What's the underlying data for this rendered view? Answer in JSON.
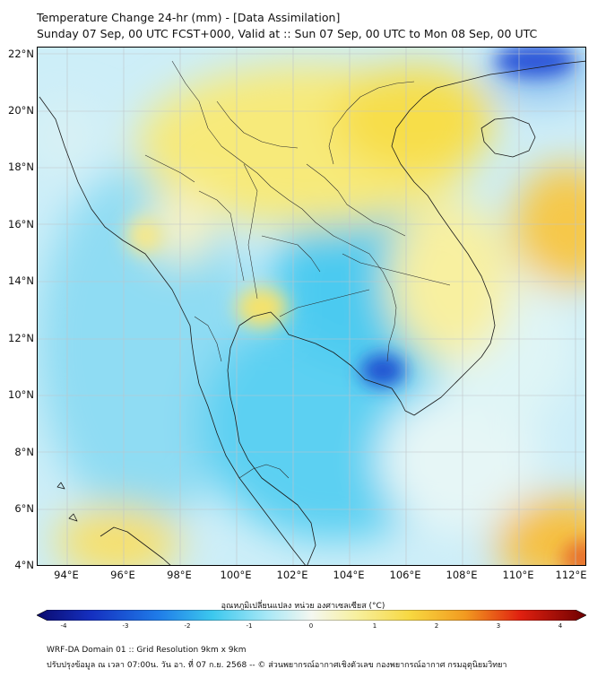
{
  "header": {
    "title": "Temperature Change 24-hr (mm) - [Data Assimilation]",
    "subtitle": "Sunday 07 Sep, 00 UTC FCST+000, Valid at :: Sun 07 Sep, 00 UTC to Mon 08 Sep, 00 UTC"
  },
  "map": {
    "lat_labels": [
      "22°N",
      "20°N",
      "18°N",
      "16°N",
      "14°N",
      "12°N",
      "10°N",
      "8°N",
      "6°N",
      "4°N"
    ],
    "lon_labels": [
      "94°E",
      "96°E",
      "98°E",
      "100°E",
      "102°E",
      "104°E",
      "106°E",
      "108°E",
      "110°E",
      "112°E"
    ]
  },
  "colorbar": {
    "label": "อุณหภูมิเปลี่ยนแปลง หน่วย องศาเซลเซียส (°C)",
    "ticks": [
      "-4",
      "-3",
      "-2",
      "-1",
      "0",
      "1",
      "2",
      "3",
      "4"
    ]
  },
  "footer": {
    "line1": "WRF-DA Domain 01 :: Grid Resolution 9km x 9km",
    "line2": "ปรับปรุงข้อมูล ณ เวลา 07:00น. วัน อา. ที่ 07 ก.ย. 2568 -- © ส่วนพยากรณ์อากาศเชิงตัวเลข กองพยากรณ์อากาศ กรมอุตุนิยมวิทยา"
  },
  "colors": {
    "cold_deep": "#0a1a8c",
    "cool": "#3cc8ee",
    "neutral": "#f4f7f0",
    "warm": "#f7e04a",
    "hot": "#d40000"
  }
}
